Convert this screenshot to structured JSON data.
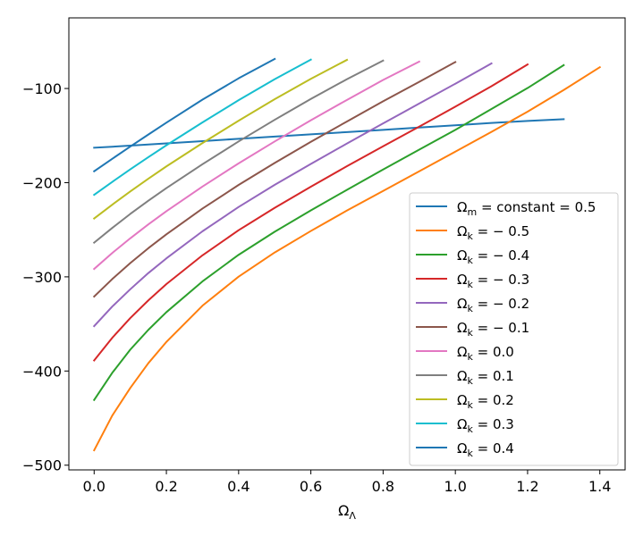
{
  "chart_data": {
    "type": "line",
    "title": "",
    "xlabel": "Ω_Λ",
    "ylabel": "",
    "xlim": [
      -0.07,
      1.47
    ],
    "ylim": [
      -505,
      -25
    ],
    "xticks": [
      0.0,
      0.2,
      0.4,
      0.6,
      0.8,
      1.0,
      1.2,
      1.4
    ],
    "xtick_labels": [
      "0.0",
      "0.2",
      "0.4",
      "0.6",
      "0.8",
      "1.0",
      "1.2",
      "1.4"
    ],
    "yticks": [
      -500,
      -400,
      -300,
      -200,
      -100
    ],
    "ytick_labels": [
      "−500",
      "−400",
      "−300",
      "−200",
      "−100"
    ],
    "legend_position": "lower-right",
    "series": [
      {
        "name": "Ω_m = constant = 0.5",
        "legend_main": "Ω",
        "legend_sub": "m",
        "legend_rest": " = constant = 0.5",
        "color": "#1f77b4",
        "x": [
          0.0,
          0.1,
          0.2,
          0.3,
          0.4,
          0.5,
          0.6,
          0.7,
          0.8,
          0.9,
          1.0,
          1.1,
          1.2,
          1.3
        ],
        "y": [
          -162.9,
          -160.7,
          -158.3,
          -155.9,
          -153.4,
          -151.0,
          -148.7,
          -146.3,
          -143.9,
          -141.4,
          -139.1,
          -136.6,
          -134.5,
          -132.6
        ]
      },
      {
        "name": "Ω_k = −0.5",
        "legend_main": "Ω",
        "legend_sub": "k",
        "legend_rest": " = − 0.5",
        "color": "#ff7f0e",
        "x": [
          0.0,
          0.05,
          0.1,
          0.15,
          0.2,
          0.3,
          0.4,
          0.5,
          0.6,
          0.7,
          0.8,
          0.9,
          1.0,
          1.1,
          1.2,
          1.3,
          1.4
        ],
        "y": [
          -484.2,
          -447.4,
          -418.0,
          -391.7,
          -369.1,
          -330.6,
          -299.8,
          -274.1,
          -251.3,
          -229.6,
          -208.8,
          -187.9,
          -167.1,
          -146.1,
          -124.6,
          -101.6,
          -77.4
        ]
      },
      {
        "name": "Ω_k = −0.4",
        "legend_main": "Ω",
        "legend_sub": "k",
        "legend_rest": " = − 0.4",
        "color": "#2ca02c",
        "x": [
          0.0,
          0.05,
          0.1,
          0.15,
          0.2,
          0.3,
          0.4,
          0.5,
          0.6,
          0.7,
          0.8,
          0.9,
          1.0,
          1.1,
          1.2,
          1.3
        ],
        "y": [
          -430.7,
          -402.0,
          -377.3,
          -356.3,
          -337.5,
          -304.8,
          -276.6,
          -252.1,
          -229.4,
          -207.6,
          -186.0,
          -164.9,
          -143.9,
          -121.8,
          -99.5,
          -75.2
        ]
      },
      {
        "name": "Ω_k = −0.3",
        "legend_main": "Ω",
        "legend_sub": "k",
        "legend_rest": " = − 0.3",
        "color": "#d62728",
        "x": [
          0.0,
          0.05,
          0.1,
          0.15,
          0.2,
          0.3,
          0.4,
          0.5,
          0.6,
          0.7,
          0.8,
          0.9,
          1.0,
          1.1,
          1.2
        ],
        "y": [
          -388.8,
          -364.8,
          -343.8,
          -325.0,
          -307.7,
          -277.1,
          -250.5,
          -226.7,
          -204.3,
          -182.5,
          -161.4,
          -140.5,
          -119.3,
          -97.6,
          -74.5
        ]
      },
      {
        "name": "Ω_k = −0.2",
        "legend_main": "Ω",
        "legend_sub": "k",
        "legend_rest": " = − 0.2",
        "color": "#9467bd",
        "x": [
          0.0,
          0.05,
          0.1,
          0.15,
          0.2,
          0.3,
          0.4,
          0.5,
          0.6,
          0.7,
          0.8,
          0.9,
          1.0,
          1.1
        ],
        "y": [
          -352.3,
          -331.6,
          -313.2,
          -296.0,
          -280.4,
          -251.6,
          -225.8,
          -202.3,
          -180.1,
          -158.4,
          -137.1,
          -116.0,
          -94.9,
          -73.4
        ]
      },
      {
        "name": "Ω_k = −0.1",
        "legend_main": "Ω",
        "legend_sub": "k",
        "legend_rest": " = − 0.1",
        "color": "#8c564b",
        "x": [
          0.0,
          0.05,
          0.1,
          0.15,
          0.2,
          0.3,
          0.4,
          0.5,
          0.6,
          0.7,
          0.8,
          0.9,
          1.0
        ],
        "y": [
          -320.9,
          -302.4,
          -285.4,
          -269.6,
          -254.9,
          -227.5,
          -202.4,
          -179.0,
          -156.6,
          -135.0,
          -113.6,
          -92.9,
          -71.9
        ]
      },
      {
        "name": "Ω_k = 0.0",
        "legend_main": "Ω",
        "legend_sub": "k",
        "legend_rest": " = 0.0",
        "color": "#e377c2",
        "x": [
          0.0,
          0.05,
          0.1,
          0.15,
          0.2,
          0.3,
          0.4,
          0.5,
          0.6,
          0.7,
          0.8,
          0.9
        ],
        "y": [
          -291.6,
          -274.7,
          -259.1,
          -244.3,
          -230.3,
          -204.1,
          -179.5,
          -156.2,
          -133.7,
          -112.1,
          -90.9,
          -71.4
        ]
      },
      {
        "name": "Ω_k = 0.1",
        "legend_main": "Ω",
        "legend_sub": "k",
        "legend_rest": " = 0.1",
        "color": "#7f7f7f",
        "x": [
          0.0,
          0.05,
          0.1,
          0.15,
          0.2,
          0.3,
          0.4,
          0.5,
          0.6,
          0.7,
          0.8
        ],
        "y": [
          -263.7,
          -248.1,
          -233.2,
          -219.2,
          -205.8,
          -180.4,
          -156.2,
          -133.2,
          -111.1,
          -90.1,
          -70.4
        ]
      },
      {
        "name": "Ω_k = 0.2",
        "legend_main": "Ω",
        "legend_sub": "k",
        "legend_rest": " = 0.2",
        "color": "#bcbd22",
        "x": [
          0.0,
          0.05,
          0.1,
          0.15,
          0.2,
          0.3,
          0.4,
          0.5,
          0.6,
          0.7
        ],
        "y": [
          -238.0,
          -223.4,
          -209.3,
          -195.8,
          -182.7,
          -157.9,
          -134.2,
          -111.3,
          -89.7,
          -69.6
        ]
      },
      {
        "name": "Ω_k = 0.3",
        "legend_main": "Ω",
        "legend_sub": "k",
        "legend_rest": " = 0.3",
        "color": "#17becf",
        "x": [
          0.0,
          0.05,
          0.1,
          0.15,
          0.2,
          0.3,
          0.4,
          0.5,
          0.6
        ],
        "y": [
          -212.9,
          -199.2,
          -185.8,
          -172.9,
          -160.3,
          -136.0,
          -112.4,
          -90.1,
          -69.3
        ]
      },
      {
        "name": "Ω_k = 0.4",
        "legend_main": "Ω",
        "legend_sub": "k",
        "legend_rest": " = 0.4",
        "color": "#1f77b4",
        "x": [
          0.0,
          0.05,
          0.1,
          0.15,
          0.2,
          0.3,
          0.4,
          0.5
        ],
        "y": [
          -187.9,
          -174.7,
          -161.7,
          -148.9,
          -136.3,
          -111.8,
          -89.2,
          -68.6
        ]
      }
    ]
  }
}
